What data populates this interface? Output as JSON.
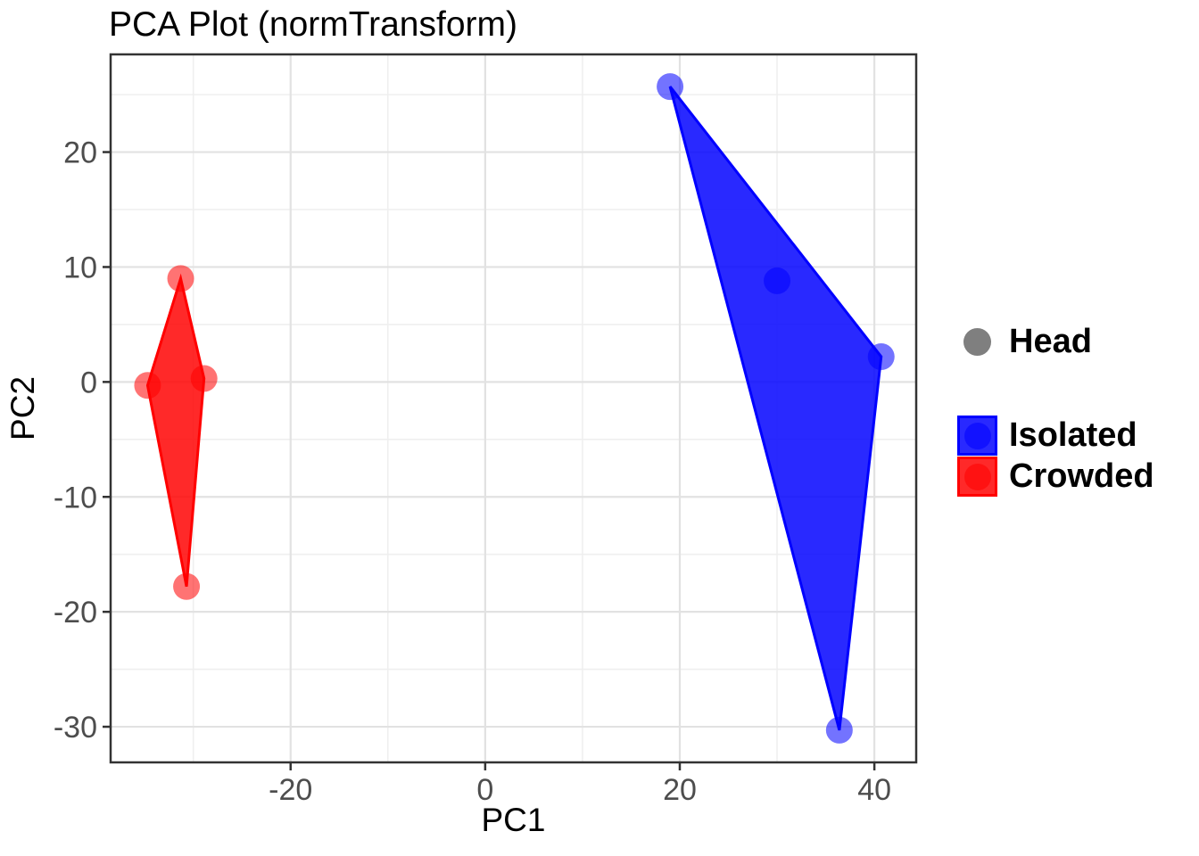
{
  "title": "PCA Plot (normTransform)",
  "chart_data": {
    "type": "scatter",
    "title": "PCA Plot (normTransform)",
    "xlabel": "PC1",
    "ylabel": "PC2",
    "xlim": [
      -38.5,
      44.3
    ],
    "ylim": [
      -33.1,
      28.5
    ],
    "x_major_ticks": [
      -20,
      0,
      20,
      40
    ],
    "x_major_labels": [
      "-20",
      "0",
      "20",
      "40"
    ],
    "x_minor_gridlines": [
      -30,
      -10,
      10,
      30
    ],
    "y_major_ticks": [
      -30,
      -20,
      -10,
      0,
      10,
      20
    ],
    "y_major_labels": [
      "-30",
      "-20",
      "-10",
      "0",
      "10",
      "20"
    ],
    "y_minor_gridlines": [
      -25,
      -15,
      -5,
      5,
      15,
      25
    ],
    "grid": true,
    "panel_border": true,
    "background": "#ffffff",
    "major_grid_color": "#e2e2e2",
    "minor_grid_color": "#efefef",
    "axis_text_color": "#4d4d4d",
    "axis_line_color": "#333333",
    "legend_position": "right",
    "hull_fill_opacity": 0.84,
    "point_opacity": 0.55,
    "shape_legend": {
      "label": "Head",
      "color": "#7f7f7f"
    },
    "series": [
      {
        "name": "Isolated",
        "color": "#0000ff",
        "points": [
          [
            19.0,
            25.7
          ],
          [
            30.0,
            8.8
          ],
          [
            40.7,
            2.2
          ],
          [
            36.4,
            -30.3
          ]
        ],
        "hull": [
          [
            19.0,
            25.7
          ],
          [
            40.7,
            2.2
          ],
          [
            36.4,
            -30.3
          ]
        ]
      },
      {
        "name": "Crowded",
        "color": "#ff0000",
        "points": [
          [
            -31.3,
            9.0
          ],
          [
            -28.9,
            0.3
          ],
          [
            -34.7,
            -0.3
          ],
          [
            -30.7,
            -17.8
          ]
        ],
        "hull": [
          [
            -31.3,
            9.0
          ],
          [
            -28.9,
            0.3
          ],
          [
            -30.7,
            -17.8
          ],
          [
            -34.7,
            -0.3
          ]
        ]
      }
    ]
  }
}
